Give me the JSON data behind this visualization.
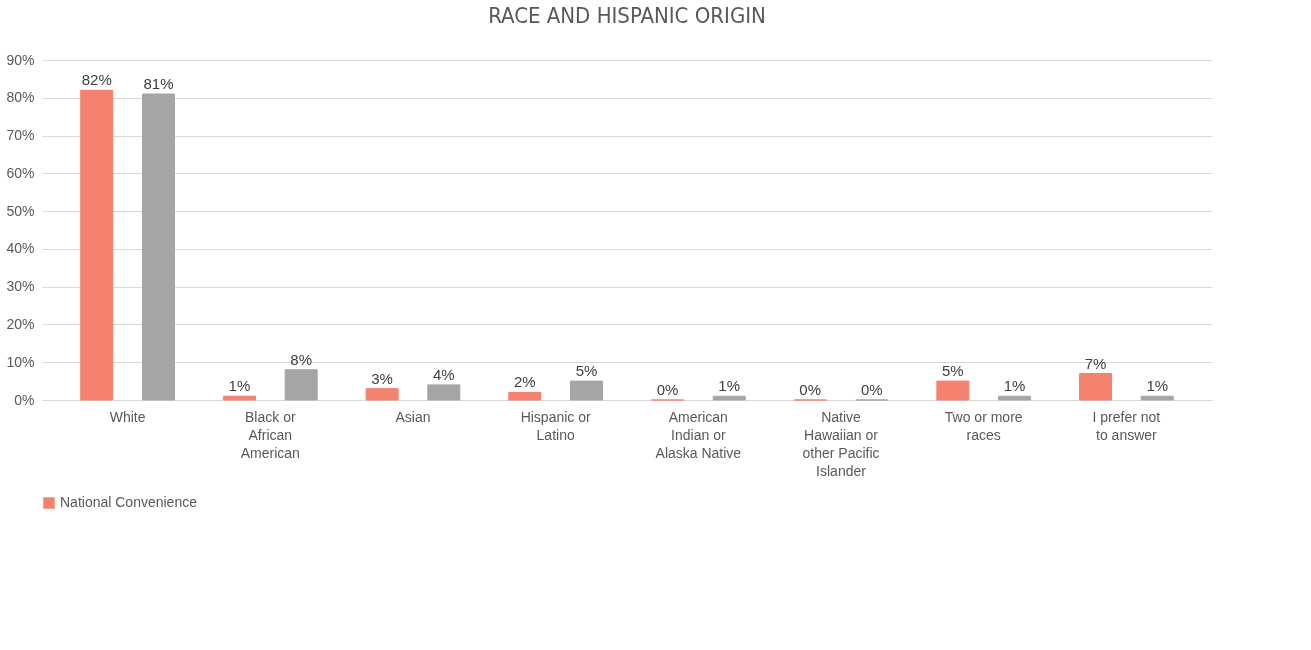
{
  "chart_data": {
    "type": "bar",
    "title": "RACE AND HISPANIC ORIGIN",
    "categories": [
      "White",
      "Black or African American",
      "Asian",
      "Hispanic or Latino",
      "American Indian or Alaska Native",
      "Native Hawaiian or other Pacific Islander",
      "Two or more races",
      "I prefer not to answer"
    ],
    "series": [
      {
        "name": "National Convenience",
        "color": "#f4826f",
        "values": [
          82,
          1,
          3,
          2,
          0,
          0,
          5,
          7
        ],
        "value_labels": [
          "82%",
          "1%",
          "3%",
          "2%",
          "0%",
          "0%",
          "5%",
          "7%"
        ]
      },
      {
        "color": "#a5a5a5",
        "values": [
          81,
          8,
          4,
          5,
          1,
          0,
          1,
          1
        ],
        "value_labels": [
          "81%",
          "8%",
          "4%",
          "5%",
          "1%",
          "0%",
          "1%",
          "1%"
        ]
      }
    ],
    "ylim": [
      0,
      90
    ],
    "yticks": [
      {
        "value": 0,
        "label": "0%"
      },
      {
        "value": 10,
        "label": "10%"
      },
      {
        "value": 20,
        "label": "20%"
      },
      {
        "value": 30,
        "label": "30%"
      },
      {
        "value": 40,
        "label": "40%"
      },
      {
        "value": 50,
        "label": "50%"
      },
      {
        "value": 60,
        "label": "60%"
      },
      {
        "value": 70,
        "label": "70%"
      },
      {
        "value": 80,
        "label": "80%"
      },
      {
        "value": 90,
        "label": "90%"
      }
    ],
    "grid": "y",
    "legend": "bottom"
  }
}
